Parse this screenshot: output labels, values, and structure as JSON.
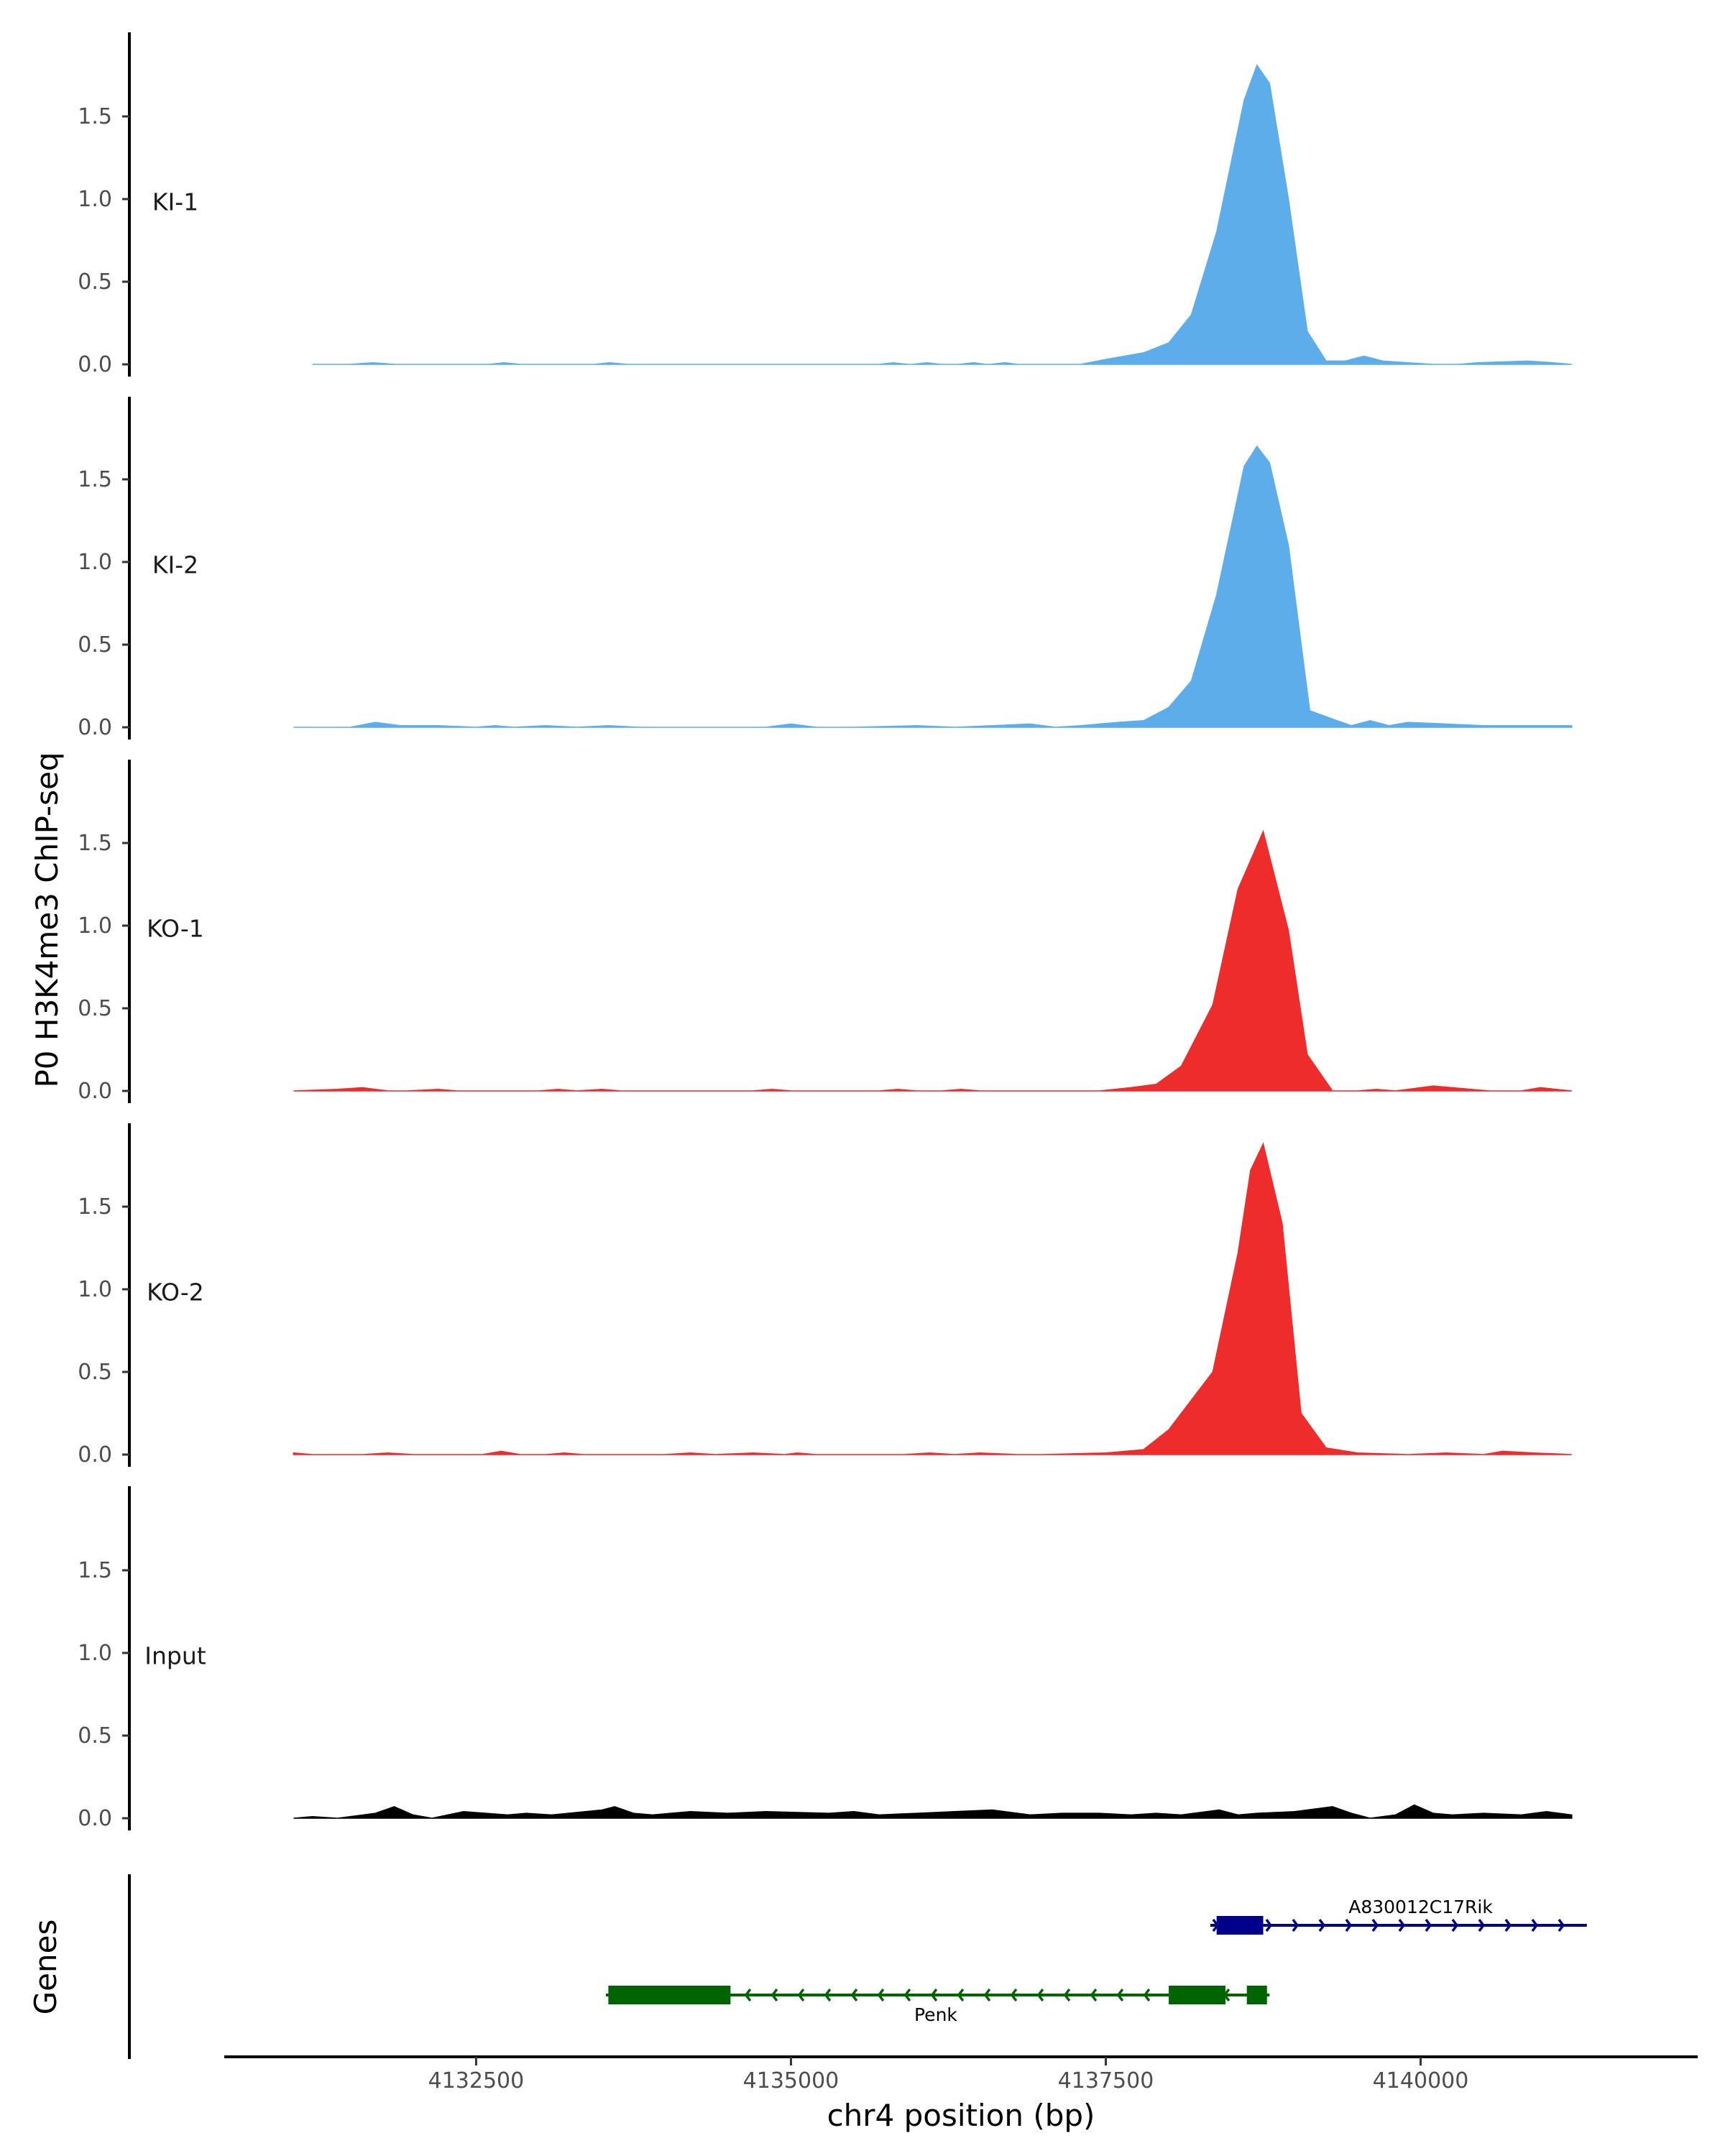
{
  "chart_data": {
    "type": "area",
    "ylabel": "P0 H3K4me3 ChIP-seq",
    "xlabel": "chr4 position (bp)",
    "genes_label": "Genes",
    "xlim": [
      4130500,
      4142200
    ],
    "ylim": [
      0,
      2.0
    ],
    "y_ticks": [
      "0.0",
      "0.5",
      "1.0",
      "1.5"
    ],
    "y_tick_values": [
      0,
      0.5,
      1.0,
      1.5
    ],
    "x_ticks": [
      "4132500",
      "4135000",
      "4137500",
      "4140000"
    ],
    "x_tick_values": [
      4132500,
      4135000,
      4137500,
      4140000
    ],
    "colors": {
      "KI": "#5DADEB",
      "KO": "#EE2C2C",
      "Input": "#000000",
      "gene_plus": "#00008B",
      "gene_minus": "#006400"
    },
    "tracks": [
      {
        "name": "KI-1",
        "color": "#5DADEB",
        "x": [
          4131200,
          4131500,
          4131680,
          4131860,
          4132000,
          4132600,
          4132720,
          4132850,
          4133440,
          4133560,
          4133700,
          4134000,
          4135700,
          4135810,
          4135930,
          4135960,
          4136080,
          4136190,
          4136330,
          4136450,
          4136550,
          4136580,
          4136700,
          4136800,
          4137300,
          4137500,
          4137800,
          4138000,
          4138180,
          4138380,
          4138600,
          4138700,
          4138800,
          4138950,
          4139100,
          4139250,
          4139400,
          4139550,
          4139700,
          4139900,
          4140100,
          4140300,
          4140450,
          4140850,
          4141050,
          4141200
        ],
        "values": [
          0,
          0,
          0.01,
          0,
          0,
          0,
          0.01,
          0,
          0,
          0.01,
          0,
          0,
          0,
          0.01,
          0,
          0,
          0.01,
          0,
          0,
          0.01,
          0,
          0,
          0.01,
          0,
          0,
          0.03,
          0.07,
          0.13,
          0.3,
          0.8,
          1.6,
          1.81,
          1.7,
          1.0,
          0.2,
          0.02,
          0.02,
          0.05,
          0.02,
          0.01,
          0,
          0,
          0.01,
          0.02,
          0.01,
          0
        ],
        "y_ticks": [
          "0.0",
          "0.5",
          "1.0",
          "1.5"
        ]
      },
      {
        "name": "KI-2",
        "color": "#5DADEB",
        "x": [
          4131050,
          4131500,
          4131700,
          4131900,
          4132200,
          4132500,
          4132650,
          4132800,
          4133050,
          4133300,
          4133550,
          4133800,
          4134800,
          4135000,
          4135200,
          4135500,
          4136000,
          4136300,
          4136600,
          4136900,
          4137100,
          4137300,
          4137600,
          4137800,
          4138000,
          4138180,
          4138380,
          4138600,
          4138700,
          4138800,
          4138950,
          4139120,
          4139300,
          4139450,
          4139600,
          4139750,
          4139900,
          4140200,
          4140500,
          4140700,
          4141000,
          4141200
        ],
        "values": [
          0,
          0,
          0.03,
          0.01,
          0.01,
          0,
          0.01,
          0,
          0.01,
          0,
          0.01,
          0,
          0,
          0.02,
          0,
          0,
          0.01,
          0,
          0.01,
          0.02,
          0,
          0.01,
          0.03,
          0.04,
          0.12,
          0.28,
          0.8,
          1.58,
          1.7,
          1.6,
          1.1,
          0.1,
          0.05,
          0.01,
          0.04,
          0.01,
          0.03,
          0.02,
          0.01,
          0.01,
          0.01,
          0.01
        ],
        "y_ticks": [
          "0.0",
          "0.5",
          "1.0",
          "1.5"
        ]
      },
      {
        "name": "KO-1",
        "color": "#EE2C2C",
        "x": [
          4131050,
          4131400,
          4131600,
          4131800,
          4131950,
          4132200,
          4132350,
          4132500,
          4133000,
          4133150,
          4133300,
          4133500,
          4133650,
          4133800,
          4134700,
          4134850,
          4135000,
          4135700,
          4135850,
          4136000,
          4136200,
          4136350,
          4136500,
          4137450,
          4137700,
          4137900,
          4138100,
          4138350,
          4138550,
          4138750,
          4138950,
          4139100,
          4139300,
          4139500,
          4139650,
          4139800,
          4140100,
          4140400,
          4140550,
          4140800,
          4140950,
          4141200
        ],
        "values": [
          0,
          0.01,
          0.02,
          0,
          0,
          0.01,
          0,
          0,
          0,
          0.01,
          0,
          0.01,
          0,
          0,
          0,
          0.01,
          0,
          0,
          0.01,
          0,
          0,
          0.01,
          0,
          0,
          0.02,
          0.04,
          0.15,
          0.52,
          1.22,
          1.57,
          0.97,
          0.22,
          0,
          0,
          0.01,
          0,
          0.03,
          0.01,
          0,
          0,
          0.02,
          0
        ],
        "y_ticks": [
          "0.0",
          "0.5",
          "1.0",
          "1.5"
        ]
      },
      {
        "name": "KO-2",
        "color": "#EE2C2C",
        "x": [
          4131050,
          4131200,
          4131600,
          4131800,
          4132000,
          4132550,
          4132700,
          4132850,
          4133050,
          4133200,
          4133350,
          4134000,
          4134200,
          4134400,
          4134700,
          4134950,
          4135050,
          4135200,
          4135900,
          4136100,
          4136300,
          4136500,
          4136800,
          4137000,
          4137500,
          4137800,
          4138000,
          4138150,
          4138350,
          4138550,
          4138650,
          4138750,
          4138900,
          4139050,
          4139250,
          4139500,
          4139900,
          4140200,
          4140500,
          4140650,
          4140900,
          4141200
        ],
        "values": [
          0.01,
          0,
          0,
          0.01,
          0,
          0,
          0.02,
          0,
          0,
          0.01,
          0,
          0,
          0.01,
          0,
          0.01,
          0,
          0.01,
          0,
          0,
          0.01,
          0,
          0.01,
          0,
          0,
          0.01,
          0.03,
          0.15,
          0.3,
          0.5,
          1.22,
          1.72,
          1.88,
          1.4,
          0.25,
          0.04,
          0.01,
          0,
          0.01,
          0,
          0.02,
          0.01,
          0
        ],
        "y_ticks": [
          "0.0",
          "0.5",
          "1.0",
          "1.5"
        ]
      },
      {
        "name": "Input",
        "color": "#000000",
        "x": [
          4131050,
          4131200,
          4131400,
          4131700,
          4131850,
          4132000,
          4132150,
          4132400,
          4132750,
          4132900,
          4133100,
          4133500,
          4133600,
          4133750,
          4133900,
          4134200,
          4134500,
          4134800,
          4135300,
          4135500,
          4135700,
          4136000,
          4136300,
          4136600,
          4136900,
          4137150,
          4137450,
          4137700,
          4137900,
          4138100,
          4138400,
          4138550,
          4138700,
          4139000,
          4139300,
          4139450,
          4139600,
          4139800,
          4139950,
          4140100,
          4140250,
          4140500,
          4140800,
          4141000,
          4141200
        ],
        "values": [
          0,
          0.01,
          0,
          0.03,
          0.07,
          0.02,
          0,
          0.04,
          0.02,
          0.03,
          0.02,
          0.05,
          0.07,
          0.03,
          0.02,
          0.04,
          0.03,
          0.04,
          0.03,
          0.04,
          0.02,
          0.03,
          0.04,
          0.05,
          0.02,
          0.03,
          0.03,
          0.02,
          0.03,
          0.02,
          0.05,
          0.02,
          0.03,
          0.04,
          0.07,
          0.03,
          0,
          0.02,
          0.08,
          0.03,
          0.02,
          0.03,
          0.02,
          0.04,
          0.02
        ],
        "y_ticks": [
          "0.0",
          "0.5",
          "1.0",
          "1.5"
        ]
      }
    ],
    "genes": [
      {
        "name": "A830012C17Rik",
        "strand": "+",
        "color": "#00008B",
        "start": 4138330,
        "end": 4141320,
        "exons": [
          [
            4138380,
            4138750
          ]
        ]
      },
      {
        "name": "Penk",
        "strand": "-",
        "color": "#006400",
        "start": 4133530,
        "end": 4138800,
        "exons": [
          [
            4133550,
            4134520
          ],
          [
            4138000,
            4138450
          ],
          [
            4138620,
            4138780
          ]
        ]
      }
    ]
  }
}
